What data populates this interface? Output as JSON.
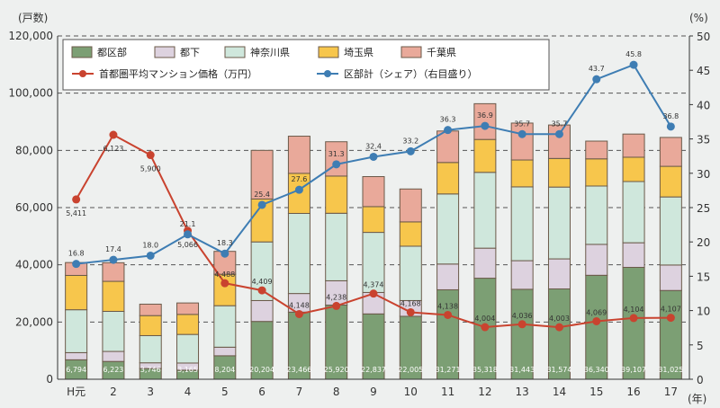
{
  "chart_data": {
    "type": "bar+line",
    "left_axis_label": "(戸数)",
    "right_axis_label": "(%)",
    "x_unit_label": "(年)",
    "categories": [
      "H元",
      "2",
      "3",
      "4",
      "5",
      "6",
      "7",
      "8",
      "9",
      "10",
      "11",
      "12",
      "13",
      "14",
      "15",
      "16",
      "17"
    ],
    "ylim_left": [
      0,
      120000
    ],
    "yticks_left": [
      "0",
      "20,000",
      "40,000",
      "60,000",
      "80,000",
      "100,000",
      "120,000"
    ],
    "ylim_right": [
      0,
      50
    ],
    "yticks_right": [
      "0",
      "5",
      "10",
      "15",
      "20",
      "25",
      "30",
      "35",
      "40",
      "45",
      "50"
    ],
    "grid": "dashed horizontal at left-axis ticks",
    "legend_position": "top-left",
    "stacked_series": [
      {
        "name": "都区部",
        "color": "#7c9f74",
        "values": [
          6794,
          6223,
          3746,
          3165,
          8204,
          20204,
          23466,
          25920,
          22837,
          22005,
          31271,
          35318,
          31443,
          31574,
          36340,
          39107,
          31025
        ],
        "labels": [
          "6,794",
          "6,223",
          "3,746",
          "3,165",
          "8,204",
          "20,204",
          "23,466",
          "25,920",
          "22,837",
          "22,005",
          "31,271",
          "35,318",
          "31,443",
          "31,574",
          "36,340",
          "39,107",
          "31,025"
        ]
      },
      {
        "name": "都下",
        "color": "#ddd2df",
        "values": [
          2500,
          3500,
          2000,
          2500,
          3000,
          7300,
          6500,
          8500,
          7500,
          5500,
          9000,
          10500,
          10000,
          10500,
          10800,
          8600,
          8900
        ]
      },
      {
        "name": "神奈川県",
        "color": "#cfe7dc",
        "values": [
          15000,
          14000,
          9500,
          10000,
          14500,
          20500,
          28000,
          23600,
          21000,
          19000,
          24500,
          26500,
          25800,
          25100,
          20400,
          21400,
          23800
        ]
      },
      {
        "name": "埼玉県",
        "color": "#f7c64c",
        "values": [
          12000,
          10500,
          7000,
          7000,
          11000,
          15000,
          14000,
          13000,
          9000,
          8500,
          11000,
          11500,
          9400,
          10000,
          9500,
          8500,
          10700
        ]
      },
      {
        "name": "千葉県",
        "color": "#e9a99a",
        "values": [
          4500,
          6500,
          4000,
          4000,
          8000,
          17000,
          13000,
          12000,
          10500,
          11500,
          11000,
          12500,
          12900,
          11700,
          6200,
          8100,
          10100
        ]
      }
    ],
    "line_series": [
      {
        "name": "首都圏平均マンション価格（万円）",
        "color": "#c9432f",
        "values": [
          5411,
          6123,
          5900,
          5066,
          4488,
          4409,
          4148,
          4238,
          4374,
          4168,
          4138,
          4004,
          4036,
          4003,
          4069,
          4104,
          4107
        ],
        "labels": [
          "5,411",
          "6,123",
          "5,900",
          "5,066",
          "4,488",
          "4,409",
          "4,148",
          "4,238",
          "4,374",
          "4,168",
          "4,138",
          "4,004",
          "4,036",
          "4,003",
          "4,069",
          "4,104",
          "4,107"
        ]
      },
      {
        "name": "区部計（シェア）（右目盛り）",
        "color": "#3e7db3",
        "axis": "right",
        "values": [
          16.8,
          17.4,
          18.0,
          21.1,
          18.3,
          25.4,
          27.6,
          31.3,
          32.4,
          33.2,
          36.3,
          36.9,
          35.7,
          35.7,
          43.7,
          45.8,
          36.8
        ],
        "labels": [
          "16.8",
          "17.4",
          "18.0",
          "21.1",
          "18.3",
          "25.4",
          "27.6",
          "31.3",
          "32.4",
          "33.2",
          "36.3",
          "36.9",
          "35.7",
          "35.7",
          "43.7",
          "45.8",
          "36.8"
        ]
      }
    ]
  }
}
